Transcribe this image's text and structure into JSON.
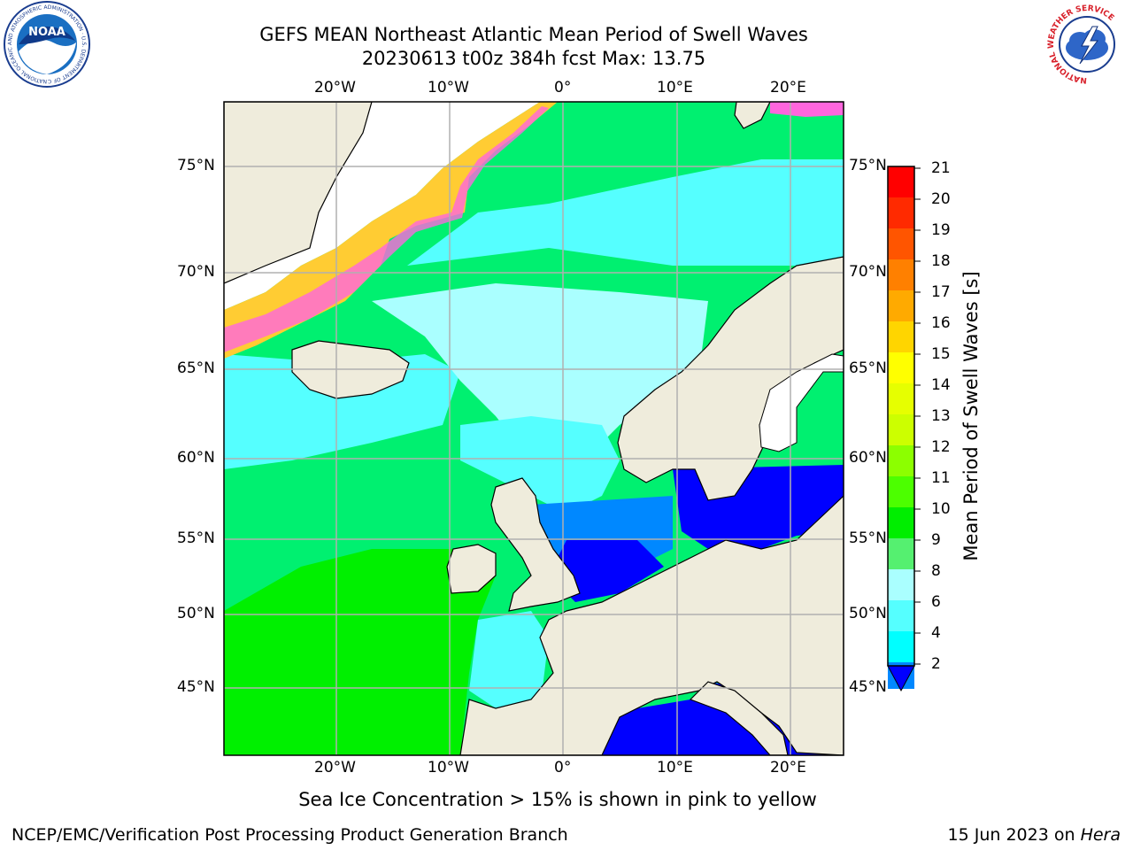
{
  "title": {
    "line1": "GEFS MEAN Northeast Atlantic Mean Period of Swell Waves",
    "line2": "20230613 t00z 384h fcst   Max: 13.75"
  },
  "map": {
    "lon_labels": [
      "20°W",
      "10°W",
      "0°",
      "10°E",
      "20°E"
    ],
    "lat_labels": [
      "75°N",
      "70°N",
      "65°N",
      "60°N",
      "55°N",
      "50°N",
      "45°N"
    ],
    "land_color": "#efecdc",
    "gridline_color": "#b0b0b0"
  },
  "colorbar": {
    "label": "Mean Period of Swell Waves [s]",
    "ticks": [
      "21",
      "20",
      "19",
      "18",
      "17",
      "16",
      "15",
      "14",
      "13",
      "12",
      "11",
      "10",
      "9",
      "8",
      "6",
      "4",
      "2"
    ],
    "colors_top_to_bottom": [
      "#ff0000",
      "#ff2a00",
      "#ff5500",
      "#ff8000",
      "#ffaa00",
      "#ffd500",
      "#ffff00",
      "#e6ff00",
      "#ccff00",
      "#8cff00",
      "#4cff00",
      "#00ee00",
      "#55f070",
      "#aaffff",
      "#55ffff",
      "#00ffff",
      "#0088ff",
      "#0000ff"
    ]
  },
  "note": "Sea Ice Concentration > 15% is shown in pink to yellow",
  "footer": {
    "left": "NCEP/EMC/Verification Post Processing Product Generation Branch",
    "date": "15 Jun 2023 on",
    "host": "Hera"
  },
  "logos": {
    "noaa_text": "NOAA",
    "noaa_ring": "NATIONAL OCEANIC AND ATMOSPHERIC ADMINISTRATION · U.S. DEPARTMENT OF COMMERCE",
    "nws_ring": "NATIONAL WEATHER SERVICE"
  }
}
